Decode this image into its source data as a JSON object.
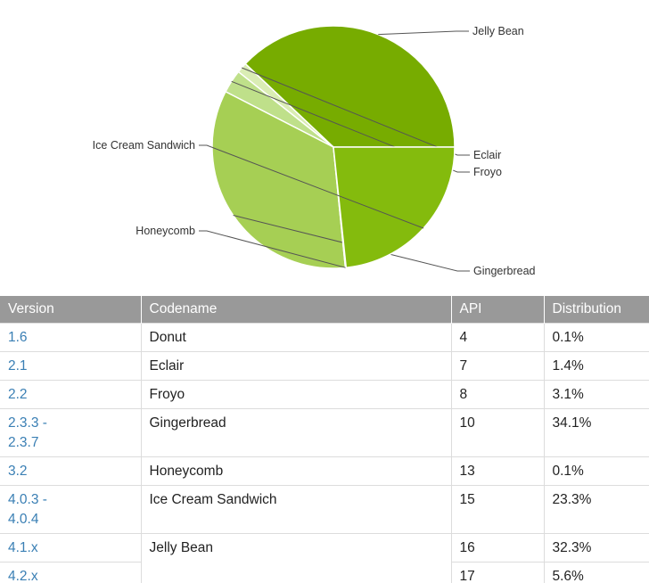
{
  "chart_data": {
    "type": "pie",
    "slices": [
      {
        "label": "Jelly Bean",
        "value": 37.9,
        "color": "#77ac00"
      },
      {
        "label": "Eclair",
        "value": 1.4,
        "color": "#daedb4"
      },
      {
        "label": "Froyo",
        "value": 3.1,
        "color": "#bfe08a"
      },
      {
        "label": "Gingerbread",
        "value": 34.1,
        "color": "#a6cf54"
      },
      {
        "label": "Honeycomb",
        "value": 0.1,
        "color": "#90c136"
      },
      {
        "label": "Ice Cream Sandwich",
        "value": 23.3,
        "color": "#84bb0d"
      }
    ],
    "start": "3 o'clock",
    "direction": "counter-clockwise",
    "slice_separator_color": "#ffffff"
  },
  "table": {
    "headers": [
      "Version",
      "Codename",
      "API",
      "Distribution"
    ],
    "header_color": "#999999",
    "link_color": "#3a7fb4",
    "rows": [
      {
        "version": "1.6",
        "codename": "Donut",
        "api": "4",
        "distribution": "0.1%"
      },
      {
        "version": "2.1",
        "codename": "Eclair",
        "api": "7",
        "distribution": "1.4%"
      },
      {
        "version": "2.2",
        "codename": "Froyo",
        "api": "8",
        "distribution": "3.1%"
      },
      {
        "version": "2.3.3 - 2.3.7",
        "codename": "Gingerbread",
        "api": "10",
        "distribution": "34.1%"
      },
      {
        "version": "3.2",
        "codename": "Honeycomb",
        "api": "13",
        "distribution": "0.1%"
      },
      {
        "version": "4.0.3 - 4.0.4",
        "codename": "Ice Cream Sandwich",
        "api": "15",
        "distribution": "23.3%"
      },
      {
        "version": "4.1.x",
        "codename": "Jelly Bean",
        "api": "16",
        "distribution": "32.3%"
      },
      {
        "version": "4.2.x",
        "codename": "",
        "api": "17",
        "distribution": "5.6%"
      }
    ]
  }
}
